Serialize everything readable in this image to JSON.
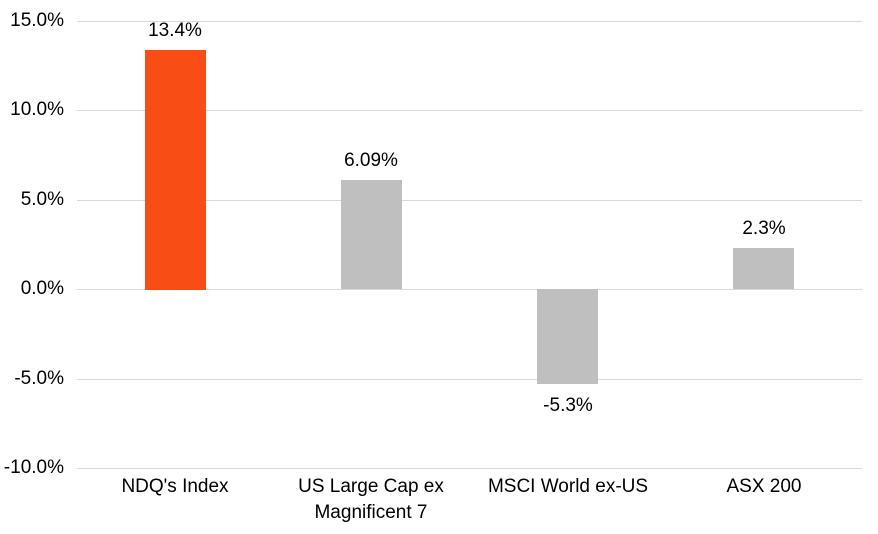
{
  "chart_data": {
    "type": "bar",
    "title": "",
    "xlabel": "",
    "ylabel": "",
    "categories": [
      "NDQ's Index",
      "US Large Cap ex Magnificent 7",
      "MSCI World ex-US",
      "ASX 200"
    ],
    "values": [
      13.4,
      6.09,
      -5.3,
      2.3
    ],
    "value_labels": [
      "13.4%",
      "6.09%",
      "-5.3%",
      "2.3%"
    ],
    "bar_colors": [
      "#F94D16",
      "#BFBFBF",
      "#BFBFBF",
      "#BFBFBF"
    ],
    "accent_color": "#F94D16",
    "neutral_bar_color": "#BFBFBF",
    "ylim": [
      -10,
      15
    ],
    "ytick_values": [
      15,
      10,
      5,
      0,
      -5,
      -10
    ],
    "ytick_labels": [
      "15.0%",
      "10.0%",
      "5.0%",
      "0.0%",
      "-5.0%",
      "-10.0%"
    ],
    "grid": true,
    "gridline_color": "#D9D9D9",
    "zero_line_color": "#D9D9D9",
    "background_color": "#FFFFFF",
    "text_color": "#000000",
    "legend": "none"
  }
}
